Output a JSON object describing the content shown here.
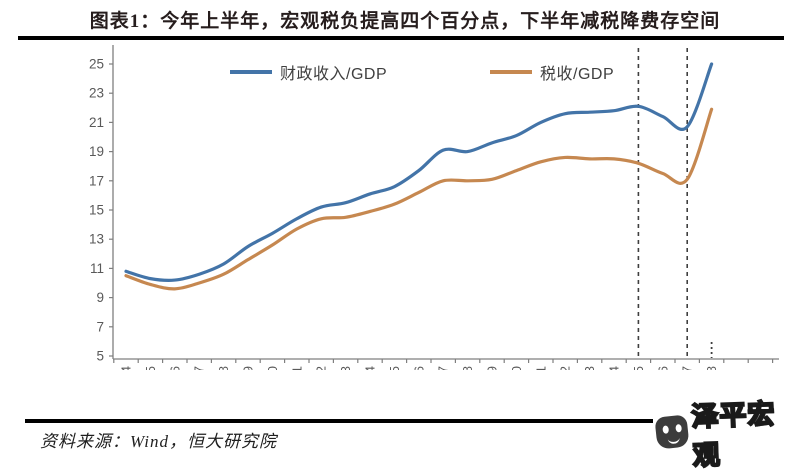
{
  "header": {
    "title": "图表1：今年上半年，宏观税负提高四个百分点，下半年减税降费存空间"
  },
  "footer": {
    "source": "资料来源：Wind，恒大研究院",
    "logo_text": "泽平宏观"
  },
  "chart_data": {
    "type": "line",
    "categories": [
      1994,
      1995,
      1996,
      1997,
      1998,
      1999,
      2000,
      2001,
      2002,
      2003,
      2004,
      2005,
      2006,
      2007,
      2008,
      2009,
      2010,
      2011,
      2012,
      2013,
      2014,
      2015,
      2016,
      2017,
      2018
    ],
    "series": [
      {
        "name": "财政收入/GDP",
        "color": "#4374a8",
        "values": [
          10.8,
          10.3,
          10.2,
          10.6,
          11.3,
          12.5,
          13.4,
          14.4,
          15.2,
          15.5,
          16.1,
          16.6,
          17.7,
          19.1,
          19.0,
          19.6,
          20.1,
          21.0,
          21.6,
          21.7,
          21.8,
          22.1,
          21.4,
          20.7,
          25.0
        ]
      },
      {
        "name": "税收/GDP",
        "color": "#c68850",
        "values": [
          10.5,
          9.9,
          9.6,
          10.0,
          10.6,
          11.6,
          12.6,
          13.7,
          14.4,
          14.5,
          14.9,
          15.4,
          16.2,
          17.0,
          17.0,
          17.1,
          17.7,
          18.3,
          18.6,
          18.5,
          18.5,
          18.2,
          17.5,
          17.1,
          21.9
        ]
      }
    ],
    "ylim": [
      5,
      25
    ],
    "ytick_step": 2,
    "yticks": [
      5,
      7,
      9,
      11,
      13,
      15,
      17,
      19,
      21,
      23,
      25
    ],
    "xlabel": "",
    "ylabel": "",
    "grid": false,
    "legend_position": "top-center",
    "annotations": {
      "dashed_vlines": [
        2015,
        2017
      ],
      "dotted_vline": 2018
    },
    "axis_color": "#7f7f7f",
    "tick_label_color": "#595959"
  }
}
